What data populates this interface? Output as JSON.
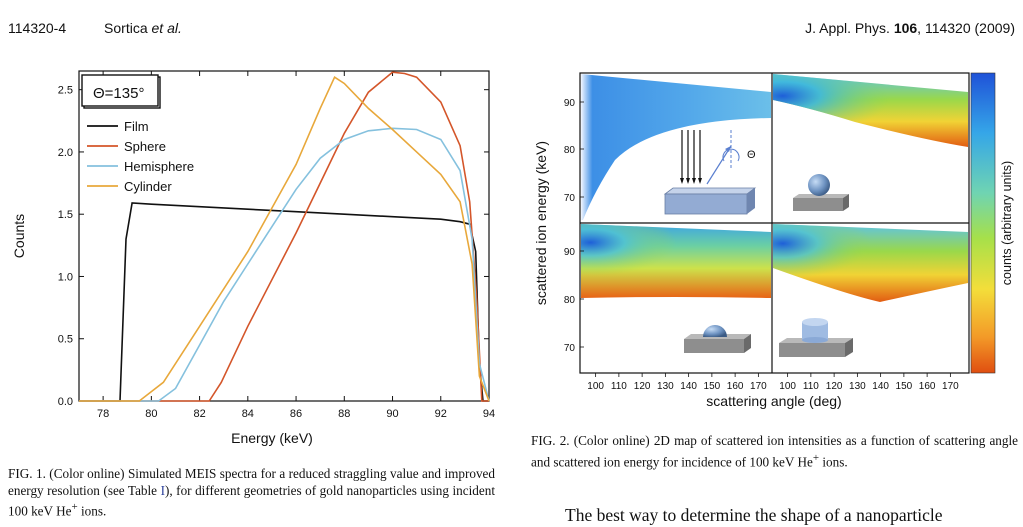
{
  "header": {
    "page_number": "114320-4",
    "authors_name": "Sortica",
    "authors_etal": "et al.",
    "journal_prefix": "J. Appl. Phys. ",
    "volume": "106",
    "journal_suffix": ", 114320 (2009)"
  },
  "fig1": {
    "caption_label": "FIG. 1.",
    "caption_text": " (Color online) Simulated MEIS spectra for a reduced straggling value and improved energy resolution (see Table ",
    "caption_ref": "I",
    "caption_text2": "), for different geometries of gold nanoparticles using incident 100 keV He",
    "caption_sup": "+",
    "caption_text3": " ions."
  },
  "fig2": {
    "caption_label": "FIG. 2.",
    "caption_text": " (Color online) 2D map of scattered ion intensities as a function of scattering angle and scattered ion energy for incidence of 100 keV He",
    "caption_sup": "+",
    "caption_text2": " ions.",
    "xlabel": "scattering angle (deg)",
    "ylabel": "scattered ion energy (keV)",
    "colorbar_label": "counts (arbitrary units)",
    "x_ticks": [
      "100",
      "110",
      "120",
      "130",
      "140",
      "150",
      "160",
      "170"
    ],
    "y_ticks_top": [
      "90",
      "80",
      "70"
    ],
    "y_ticks_bottom": [
      "90",
      "80",
      "70"
    ],
    "theta_symbol": "Θ",
    "colors": {
      "low": "#e05a10",
      "mid": "#8ccf3c",
      "high": "#1e5fd8"
    }
  },
  "body_text": "The best way to determine the shape of a nanoparticle",
  "chart_data": [
    {
      "type": "line",
      "annotation": "Θ=135°",
      "xlabel": "Energy (keV)",
      "ylabel": "Counts",
      "xlim": [
        77,
        94
      ],
      "ylim": [
        0,
        2.65
      ],
      "x_ticks": [
        78,
        80,
        82,
        84,
        86,
        88,
        90,
        92,
        94
      ],
      "y_ticks": [
        0.0,
        0.5,
        1.0,
        1.5,
        2.0,
        2.5
      ],
      "legend_position": "top-left",
      "series": [
        {
          "name": "Film",
          "color": "#111111",
          "x": [
            77,
            78.7,
            78.95,
            79.2,
            80,
            82,
            84,
            86,
            88,
            90,
            92,
            92.8,
            93.2,
            93.45,
            93.6,
            93.75,
            94
          ],
          "y": [
            0,
            0,
            1.3,
            1.59,
            1.58,
            1.56,
            1.54,
            1.52,
            1.5,
            1.48,
            1.46,
            1.44,
            1.42,
            1.2,
            0.3,
            0,
            0
          ]
        },
        {
          "name": "Sphere",
          "color": "#d4562a",
          "x": [
            77,
            82.4,
            82.9,
            84,
            86,
            87,
            88,
            89,
            90,
            90.5,
            91,
            92,
            92.8,
            93.2,
            93.5,
            93.7,
            94
          ],
          "y": [
            0,
            0,
            0.15,
            0.6,
            1.35,
            1.75,
            2.15,
            2.48,
            2.64,
            2.63,
            2.6,
            2.4,
            2.05,
            1.6,
            0.8,
            0,
            0
          ]
        },
        {
          "name": "Hemisphere",
          "color": "#85c1de",
          "x": [
            77,
            80.3,
            81,
            82,
            83,
            84,
            85,
            86,
            87,
            88,
            89,
            90,
            91,
            92,
            92.8,
            93.3,
            93.6,
            94
          ],
          "y": [
            0,
            0,
            0.1,
            0.45,
            0.8,
            1.1,
            1.4,
            1.7,
            1.95,
            2.1,
            2.17,
            2.19,
            2.18,
            2.1,
            1.85,
            1.3,
            0.3,
            0
          ]
        },
        {
          "name": "Cylinder",
          "color": "#e8a83b",
          "x": [
            77,
            79.5,
            80.5,
            82,
            84,
            86,
            87,
            87.6,
            88,
            89,
            90,
            91,
            92,
            92.8,
            93.3,
            93.6,
            94
          ],
          "y": [
            0,
            0,
            0.15,
            0.6,
            1.2,
            1.9,
            2.35,
            2.6,
            2.55,
            2.35,
            2.18,
            2.0,
            1.82,
            1.6,
            1.1,
            0.2,
            0
          ]
        }
      ]
    },
    {
      "type": "heatmap",
      "xlabel": "scattering angle (deg)",
      "ylabel": "scattered ion energy (keV)",
      "colorbar_label": "counts (arbitrary units)",
      "xlim": [
        95,
        175
      ],
      "ylim": [
        64,
        96
      ],
      "panels": [
        "Film",
        "Sphere",
        "Hemisphere",
        "Cylinder"
      ]
    }
  ]
}
